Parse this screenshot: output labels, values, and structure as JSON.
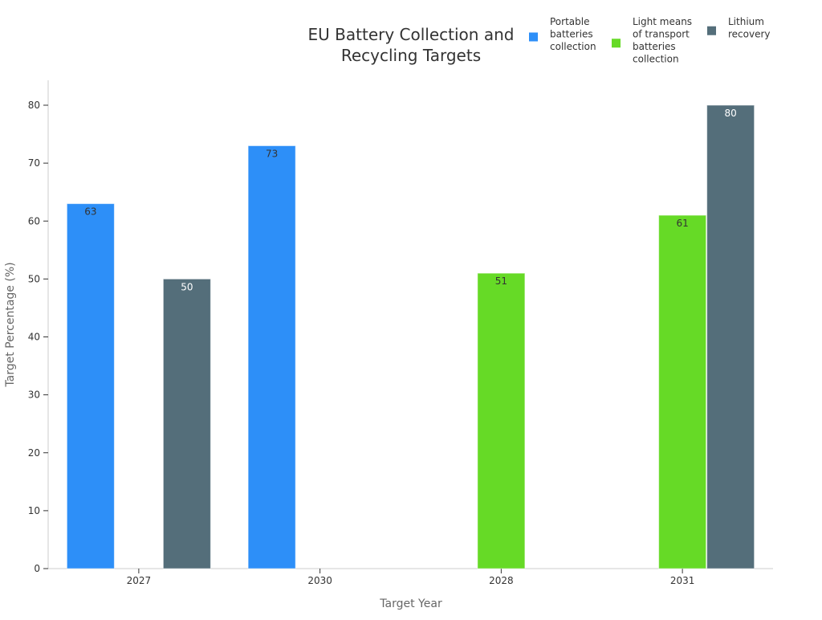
{
  "chart_data": {
    "type": "bar",
    "title_lines": [
      "EU Battery Collection and",
      "Recycling Targets"
    ],
    "xlabel": "Target Year",
    "ylabel": "Target Percentage (%)",
    "ylim": [
      0,
      80
    ],
    "yticks": [
      0,
      10,
      20,
      30,
      40,
      50,
      60,
      70,
      80
    ],
    "categories": [
      "2027",
      "2030",
      "2028",
      "2031"
    ],
    "legend_placement": "top-right",
    "series": [
      {
        "name_lines": [
          "Portable",
          "batteries",
          "collection"
        ],
        "color": "#2d8ff8",
        "label_color": "#333333",
        "values": [
          63,
          73,
          null,
          null
        ]
      },
      {
        "name_lines": [
          "Light means",
          "of transport",
          "batteries",
          "collection"
        ],
        "color": "#66da26",
        "label_color": "#333333",
        "values": [
          null,
          null,
          51,
          61
        ]
      },
      {
        "name_lines": [
          "Lithium",
          "recovery"
        ],
        "color": "#546e7a",
        "label_color": "#ffffff",
        "values": [
          50,
          null,
          null,
          80
        ]
      }
    ]
  }
}
